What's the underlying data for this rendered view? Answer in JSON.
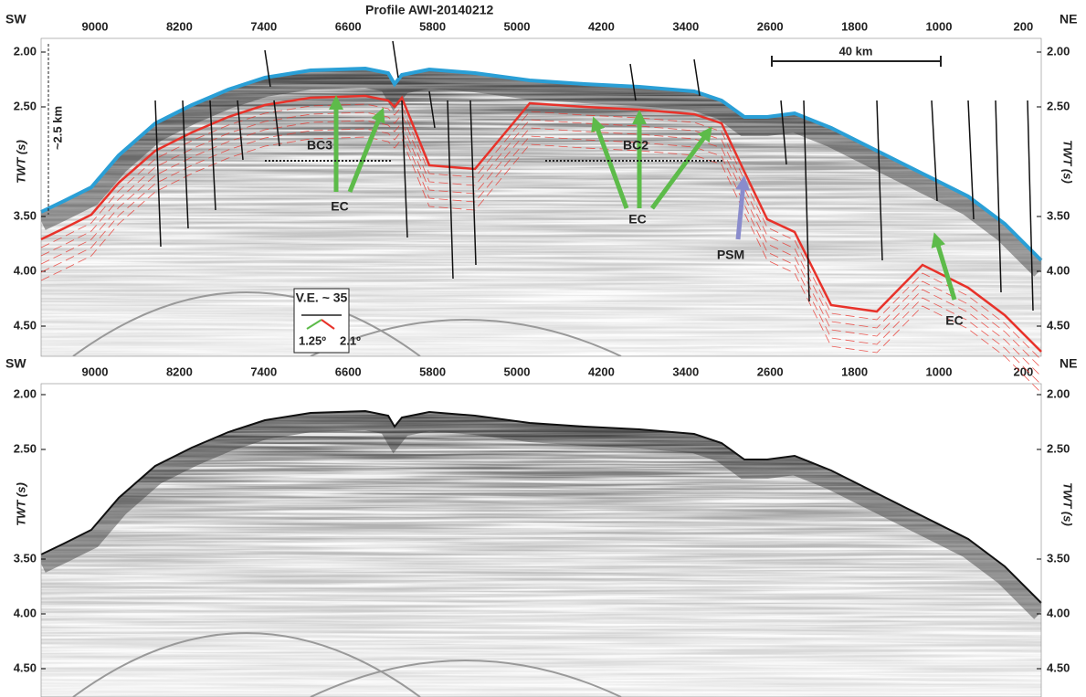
{
  "header": {
    "title": "Profile AWI-20140212",
    "left": "SW",
    "right": "NE"
  },
  "panels": [
    {
      "x_ticks": [
        "9000",
        "8200",
        "7400",
        "6600",
        "5800",
        "5000",
        "4200",
        "3400",
        "2600",
        "1800",
        "1000",
        "200"
      ],
      "y_ticks": [
        "2.00",
        "2.50",
        "3.50",
        "4.00",
        "4.50"
      ],
      "y_label": "TWT (s)",
      "annotations": {
        "bc3": "BC3",
        "bc2": "BC2",
        "ec": [
          "EC",
          "EC",
          "EC"
        ],
        "psm": "PSM",
        "ve": "V.E. ~ 35",
        "angle_left": "1.25º",
        "angle_right": "2.1º",
        "scale_h": "40 km",
        "scale_v": "~2.5 km"
      }
    },
    {
      "left": "SW",
      "right": "NE",
      "x_ticks": [
        "9000",
        "8200",
        "7400",
        "6600",
        "5800",
        "5000",
        "4200",
        "3400",
        "2600",
        "1800",
        "1000",
        "200"
      ],
      "y_ticks": [
        "2.00",
        "2.50",
        "3.50",
        "4.00",
        "4.50"
      ],
      "y_label": "TWT (s)"
    }
  ]
}
